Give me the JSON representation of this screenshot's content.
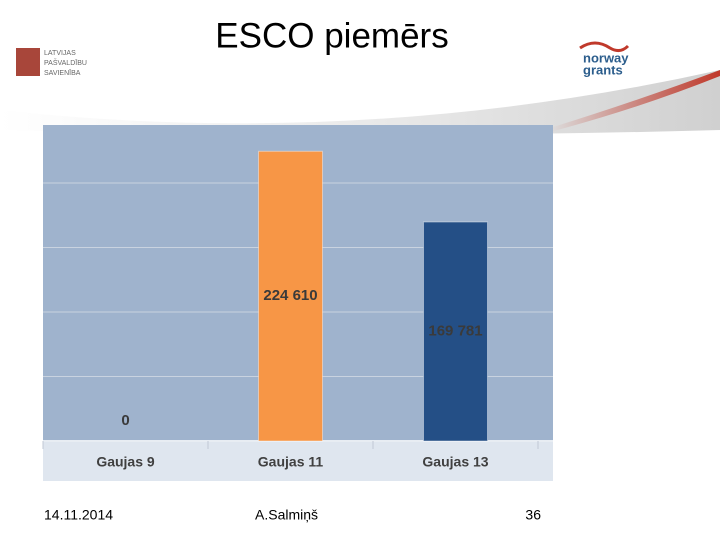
{
  "slide": {
    "date": "14.11.2014",
    "author": "A.Salmiņš",
    "page": "36",
    "logo_lines": [
      "LATVIJAS",
      "PAŠVALDĪBU",
      "SAVIENĪBA"
    ],
    "partner_lines": [
      "norway",
      "grants"
    ]
  },
  "chart_data": {
    "type": "bar",
    "title": "ESCO piemērs",
    "categories": [
      "Gaujas 9",
      "Gaujas 11",
      "Gaujas 13"
    ],
    "values": [
      0,
      224610,
      169781
    ],
    "value_labels": [
      "0",
      "224 610",
      "169 781"
    ],
    "colors": [
      "#f79646",
      "#f79646",
      "#244f86"
    ],
    "ylim": [
      0,
      245000
    ],
    "grid_lines": [
      50000,
      100000,
      150000,
      200000
    ],
    "grid": true
  }
}
